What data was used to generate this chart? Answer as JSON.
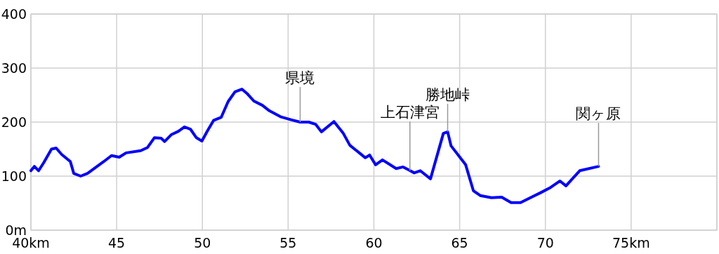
{
  "chart_data": {
    "type": "line",
    "x": [
      40,
      40.2,
      40.45,
      40.75,
      41.2,
      41.47,
      41.8,
      42.3,
      42.5,
      42.9,
      43.3,
      44.25,
      44.7,
      45.15,
      45.55,
      46.4,
      46.8,
      47.2,
      47.6,
      47.8,
      48.2,
      48.6,
      48.95,
      49.3,
      49.65,
      49.97,
      50.3,
      50.65,
      51.1,
      51.5,
      51.9,
      52.3,
      52.6,
      53,
      53.5,
      53.9,
      54.55,
      55.2,
      55.7,
      56.2,
      56.6,
      56.94,
      57.67,
      58.2,
      58.6,
      59.5,
      59.75,
      60.1,
      60.5,
      61.3,
      61.7,
      62,
      62.35,
      62.7,
      63.3,
      64.05,
      64.3,
      64.5,
      65.35,
      65.8,
      66.2,
      66.85,
      67.45,
      68,
      68.55,
      69.7,
      70.3,
      70.85,
      71.2,
      72,
      73.1
    ],
    "series": [
      {
        "color": "#0000ff",
        "values": [
          110,
          118,
          110,
          125,
          150,
          152,
          140,
          127,
          105,
          100,
          105,
          127,
          138,
          135,
          143,
          147,
          153,
          171,
          170,
          164,
          177,
          183,
          191,
          187,
          171,
          165,
          184,
          203,
          209,
          238,
          256,
          261,
          253,
          239,
          231,
          221,
          210,
          204,
          200,
          200,
          196,
          182,
          201,
          180,
          157,
          134,
          139,
          121,
          130,
          114,
          117,
          112,
          106,
          110,
          95,
          179,
          182,
          156,
          121,
          73,
          64,
          60,
          61,
          51,
          51,
          69,
          79,
          91,
          82,
          110,
          118
        ]
      }
    ],
    "xlim": [
      40,
      80
    ],
    "ylim": [
      0,
      400
    ],
    "xticks": [
      {
        "value": 40,
        "label": "40km"
      },
      45,
      50,
      55,
      60,
      65,
      70,
      {
        "value": 75,
        "label": "75km"
      },
      {
        "value": 80,
        "label": null
      }
    ],
    "yticks": [
      {
        "value": 0,
        "label": "0m"
      },
      100,
      200,
      300,
      400
    ],
    "grid": true,
    "marker": "none",
    "line_style": "solid",
    "annotations": [
      {
        "text": "県境",
        "x": 55.7,
        "y": 200
      },
      {
        "text": "上石津宮",
        "x": 62.1,
        "y": 110
      },
      {
        "text": "勝地峠",
        "x": 64.3,
        "y": 182
      },
      {
        "text": "関ヶ原",
        "x": 73.1,
        "y": 118
      }
    ]
  }
}
